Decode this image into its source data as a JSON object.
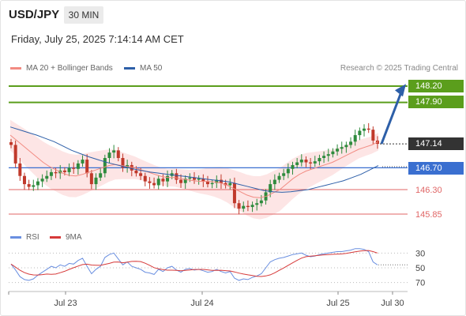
{
  "header": {
    "symbol": "USD/JPY",
    "timeframe": "30 MIN",
    "datetime": "Friday, July 25, 2025 7:14:14 AM CET"
  },
  "legend": {
    "ma20_label": "MA 20 + Bollinger Bands",
    "ma50_label": "MA 50",
    "copyright": "Research © 2025 Trading Central"
  },
  "price_levels": {
    "r2": "148.20",
    "r1": "147.90",
    "last": "147.14",
    "pivot": "146.70",
    "s1": "146.30",
    "s2": "145.85"
  },
  "rsi_legend": {
    "rsi_label": "RSI",
    "ma_label": "9MA"
  },
  "rsi_ticks": [
    "70",
    "50",
    "30"
  ],
  "x_ticks": [
    "Jul 23",
    "Jul 24",
    "Jul 25",
    "Jul 30"
  ],
  "colors": {
    "resistance": "#5b9e1c",
    "pivot": "#3a6fd0",
    "support": "#e06666",
    "last_tag": "#333333",
    "arrow": "#2d5fa8",
    "ma20": "#f28b82",
    "ma50": "#2d5fa8",
    "bollinger_fill": "#fde1e1",
    "candle_up": "#2e8b3d",
    "candle_down": "#c0392b",
    "rsi_line": "#6a8fe0",
    "rsi_ma": "#d63a3a"
  },
  "chart_data": {
    "type": "candlestick",
    "price_range": [
      145.7,
      148.4
    ],
    "levels": [
      {
        "name": "resistance-2",
        "value": 148.2
      },
      {
        "name": "resistance-1",
        "value": 147.9
      },
      {
        "name": "last",
        "value": 147.14
      },
      {
        "name": "pivot",
        "value": 146.7
      },
      {
        "name": "support-1",
        "value": 146.3
      },
      {
        "name": "support-2",
        "value": 145.85
      }
    ],
    "close": [
      147.12,
      146.78,
      146.55,
      146.4,
      146.35,
      146.38,
      146.45,
      146.5,
      146.55,
      146.62,
      146.6,
      146.65,
      146.62,
      146.7,
      146.68,
      146.78,
      146.85,
      146.6,
      146.4,
      146.52,
      146.6,
      146.88,
      146.98,
      147.02,
      146.88,
      146.7,
      146.75,
      146.65,
      146.6,
      146.55,
      146.45,
      146.42,
      146.38,
      146.5,
      146.45,
      146.55,
      146.6,
      146.48,
      146.42,
      146.5,
      146.52,
      146.48,
      146.5,
      146.45,
      146.4,
      146.42,
      146.48,
      146.42,
      146.38,
      146.42,
      146.05,
      145.95,
      146.0,
      145.98,
      146.02,
      146.05,
      146.1,
      146.25,
      146.4,
      146.48,
      146.55,
      146.6,
      146.68,
      146.75,
      146.8,
      146.85,
      146.8,
      146.78,
      146.82,
      146.88,
      146.92,
      146.95,
      147.0,
      147.05,
      147.08,
      147.12,
      147.18,
      147.3,
      147.38,
      147.42,
      147.4,
      147.2,
      147.14
    ],
    "ma20": [
      147.3,
      147.2,
      147.1,
      147.0,
      146.9,
      146.8,
      146.72,
      146.66,
      146.6,
      146.56,
      146.55,
      146.58,
      146.62,
      146.66,
      146.7,
      146.74,
      146.76,
      146.74,
      146.72,
      146.7,
      146.66,
      146.62,
      146.58,
      146.54,
      146.52,
      146.52,
      146.5,
      146.48,
      146.46,
      146.45,
      146.45,
      146.44,
      146.42,
      146.38,
      146.32,
      146.26,
      146.2,
      146.16,
      146.15,
      146.18,
      146.24,
      146.3,
      146.4,
      146.5,
      146.58,
      146.64,
      146.68,
      146.72,
      146.76,
      146.8,
      146.86,
      146.92,
      146.98,
      147.04,
      147.08,
      147.12,
      147.18
    ],
    "ma50": [
      147.45,
      147.4,
      147.35,
      147.3,
      147.24,
      147.18,
      147.1,
      147.02,
      146.96,
      146.9,
      146.85,
      146.8,
      146.76,
      146.72,
      146.68,
      146.65,
      146.62,
      146.6,
      146.58,
      146.56,
      146.54,
      146.52,
      146.5,
      146.48,
      146.46,
      146.44,
      146.4,
      146.36,
      146.32,
      146.28,
      146.26,
      146.25,
      146.26,
      146.28,
      146.3,
      146.34,
      146.38,
      146.42,
      146.46,
      146.52,
      146.58,
      146.66,
      146.74
    ],
    "rsi": [
      55,
      47,
      38,
      34,
      33,
      35,
      40,
      44,
      48,
      52,
      50,
      54,
      52,
      56,
      55,
      60,
      63,
      52,
      42,
      48,
      52,
      64,
      68,
      70,
      62,
      54,
      58,
      52,
      50,
      48,
      44,
      43,
      41,
      48,
      45,
      50,
      52,
      47,
      44,
      48,
      49,
      47,
      48,
      46,
      44,
      45,
      48,
      45,
      43,
      45,
      36,
      33,
      35,
      34,
      37,
      39,
      42,
      50,
      58,
      61,
      63,
      64,
      66,
      68,
      69,
      70,
      67,
      65,
      66,
      68,
      69,
      70,
      71,
      72,
      72,
      73,
      74,
      76,
      76,
      75,
      72,
      58,
      54
    ],
    "rsi_axis": [
      30,
      50,
      70
    ]
  }
}
